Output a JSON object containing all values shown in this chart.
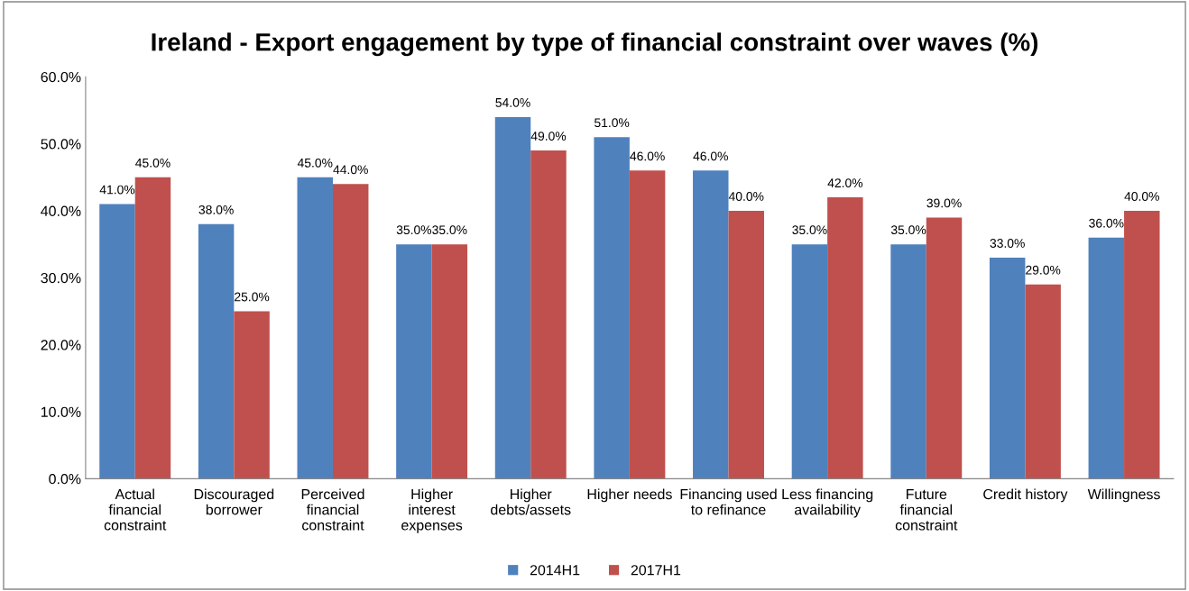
{
  "chart_data": {
    "type": "bar",
    "title": "Ireland - Export engagement by type of financial constraint over waves (%)",
    "categories": [
      "Actual\nfinancial\nconstraint",
      "Discouraged\nborrower",
      "Perceived\nfinancial\nconstraint",
      "Higher\ninterest\nexpenses",
      "Higher\ndebts/assets",
      "Higher needs",
      "Financing used\nto refinance",
      "Less financing\navailability",
      "Future\nfinancial\nconstraint",
      "Credit history",
      "Willingness"
    ],
    "series": [
      {
        "name": "2014H1",
        "color": "#4f81bd",
        "values": [
          41,
          38,
          45,
          35,
          54,
          51,
          46,
          35,
          35,
          33,
          36
        ],
        "value_labels": [
          "41.0%",
          "38.0%",
          "45.0%",
          "35.0%",
          "54.0%",
          "51.0%",
          "46.0%",
          "35.0%",
          "35.0%",
          "33.0%",
          "36.0%"
        ]
      },
      {
        "name": "2017H1",
        "color": "#c0504d",
        "values": [
          45,
          25,
          44,
          35,
          49,
          46,
          40,
          42,
          39,
          29,
          40
        ],
        "value_labels": [
          "45.0%",
          "25.0%",
          "44.0%",
          "35.0%",
          "49.0%",
          "46.0%",
          "40.0%",
          "42.0%",
          "39.0%",
          "29.0%",
          "40.0%"
        ]
      }
    ],
    "ylim": [
      0,
      60
    ],
    "yticks": [
      {
        "value": 0,
        "label": "0.0%"
      },
      {
        "value": 10,
        "label": "10.0%"
      },
      {
        "value": 20,
        "label": "20.0%"
      },
      {
        "value": 30,
        "label": "30.0%"
      },
      {
        "value": 40,
        "label": "40.0%"
      },
      {
        "value": 50,
        "label": "50.0%"
      },
      {
        "value": 60,
        "label": "60.0%"
      }
    ],
    "grid": false,
    "legend": "bottom"
  }
}
